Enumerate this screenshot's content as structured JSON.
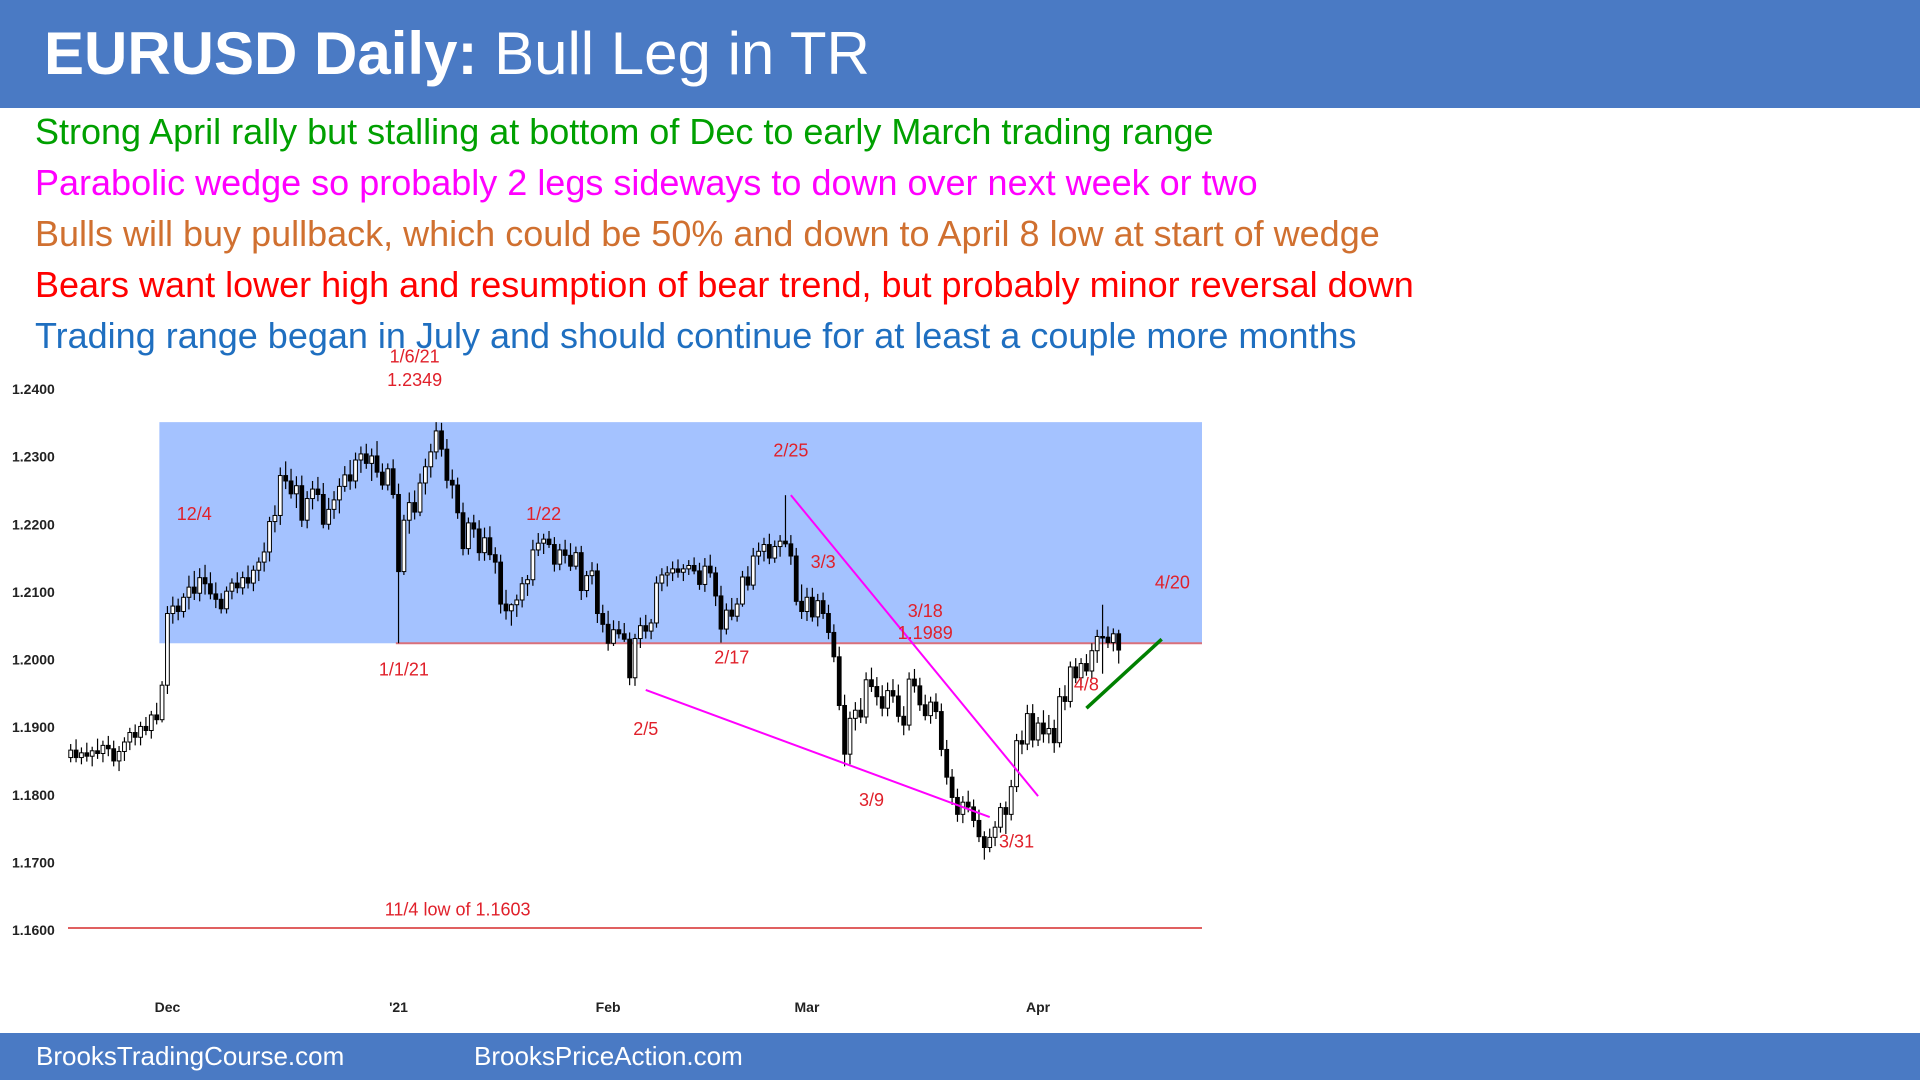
{
  "header": {
    "title_bold": "EURUSD Daily:",
    "title_rest": " Bull Leg in TR"
  },
  "bullets": [
    {
      "text": "Strong April rally but stalling at bottom of Dec to early March trading range",
      "color": "#00a000"
    },
    {
      "text": "Parabolic wedge so probably 2 legs sideways to down over next week or two",
      "color": "#ff00ff"
    },
    {
      "text": "Bulls will buy pullback, which could be 50% and down to April 8 low at start of wedge",
      "color": "#d07030"
    },
    {
      "text": "Bears want lower high and resumption of bear trend, but probably minor reversal down",
      "color": "#ff0000"
    },
    {
      "text": "Trading range began in July and should continue for at least a couple more months",
      "color": "#1f6fc0"
    }
  ],
  "footer": {
    "left": "BrooksTradingCourse.com",
    "right": "BrooksPriceAction.com"
  },
  "chart_data": {
    "type": "candlestick",
    "ylim": [
      1.16,
      1.24
    ],
    "yticks": [
      "1.2400",
      "1.2300",
      "1.2200",
      "1.2100",
      "1.2000",
      "1.1900",
      "1.1800",
      "1.1700",
      "1.1600"
    ],
    "xticks": [
      {
        "label": "Dec",
        "index": 18
      },
      {
        "label": "'21",
        "index": 61
      },
      {
        "label": "Feb",
        "index": 100
      },
      {
        "label": "Mar",
        "index": 137
      },
      {
        "label": "Apr",
        "index": 180
      }
    ],
    "n_bars": 211,
    "range_box": {
      "low": 1.2024,
      "high": 1.2351,
      "from_index": 17,
      "to_index": 211,
      "color": "#a4c2ff"
    },
    "hlines": [
      {
        "value": 1.2024,
        "from_index": 61,
        "to_index": 211,
        "color": "#d9707a"
      },
      {
        "value": 1.1603,
        "from_index": 0,
        "to_index": 211,
        "color": "#e06060"
      }
    ],
    "trendlines": [
      {
        "from": [
          134,
          1.2243
        ],
        "to": [
          180,
          1.1798
        ],
        "color": "#ff00ff"
      },
      {
        "from": [
          107,
          1.1955
        ],
        "to": [
          171,
          1.1767
        ],
        "color": "#ff00ff"
      },
      {
        "from": [
          189,
          1.1928
        ],
        "to": [
          203,
          1.203
        ],
        "color": "#008000"
      }
    ],
    "annotations": [
      {
        "text": "1/6/21",
        "index": 64,
        "price": 1.2448
      },
      {
        "text": "1.2349",
        "index": 64,
        "price": 1.2413
      },
      {
        "text": "12/4",
        "index": 23,
        "price": 1.2215
      },
      {
        "text": "1/22",
        "index": 88,
        "price": 1.2215
      },
      {
        "text": "2/25",
        "index": 134,
        "price": 1.2309
      },
      {
        "text": "3/3",
        "index": 140,
        "price": 1.2144
      },
      {
        "text": "3/18",
        "index": 159,
        "price": 1.2072
      },
      {
        "text": "1.1989",
        "index": 159,
        "price": 1.2039
      },
      {
        "text": "4/20",
        "index": 205,
        "price": 1.2114
      },
      {
        "text": "1/1/21",
        "index": 62,
        "price": 1.1985
      },
      {
        "text": "2/17",
        "index": 123,
        "price": 1.2003
      },
      {
        "text": "2/5",
        "index": 107,
        "price": 1.1897
      },
      {
        "text": "4/8",
        "index": 189,
        "price": 1.1963
      },
      {
        "text": "3/9",
        "index": 149,
        "price": 1.1792
      },
      {
        "text": "3/31",
        "index": 176,
        "price": 1.1731
      },
      {
        "text": "11/4 low of 1.1603",
        "index": 72,
        "price": 1.163
      }
    ],
    "candles": [
      [
        1.1855,
        1.1875,
        1.1848,
        1.1866
      ],
      [
        1.1866,
        1.1882,
        1.1848,
        1.1855
      ],
      [
        1.1855,
        1.187,
        1.1845,
        1.1862
      ],
      [
        1.1862,
        1.1877,
        1.1849,
        1.1857
      ],
      [
        1.1857,
        1.1871,
        1.1842,
        1.1865
      ],
      [
        1.1865,
        1.1883,
        1.1853,
        1.1861
      ],
      [
        1.1861,
        1.188,
        1.1848,
        1.1873
      ],
      [
        1.1873,
        1.1887,
        1.1857,
        1.1868
      ],
      [
        1.1868,
        1.188,
        1.1842,
        1.185
      ],
      [
        1.185,
        1.1872,
        1.1835,
        1.1864
      ],
      [
        1.1864,
        1.1885,
        1.185,
        1.1878
      ],
      [
        1.1878,
        1.1899,
        1.1866,
        1.1892
      ],
      [
        1.1892,
        1.1904,
        1.1873,
        1.1885
      ],
      [
        1.1885,
        1.1908,
        1.1873,
        1.1901
      ],
      [
        1.1901,
        1.1915,
        1.1888,
        1.1895
      ],
      [
        1.1895,
        1.1924,
        1.1883,
        1.1918
      ],
      [
        1.1918,
        1.1936,
        1.1904,
        1.1911
      ],
      [
        1.1911,
        1.1968,
        1.1907,
        1.1962
      ],
      [
        1.1962,
        1.2079,
        1.1949,
        1.2068
      ],
      [
        1.2068,
        1.2093,
        1.2053,
        1.2079
      ],
      [
        1.2079,
        1.209,
        1.2058,
        1.2071
      ],
      [
        1.2071,
        1.2098,
        1.2062,
        1.2092
      ],
      [
        1.2092,
        1.2124,
        1.2074,
        1.2107
      ],
      [
        1.2107,
        1.2131,
        1.2088,
        1.2098
      ],
      [
        1.2098,
        1.2135,
        1.2086,
        1.2121
      ],
      [
        1.2121,
        1.214,
        1.2096,
        1.2112
      ],
      [
        1.2112,
        1.2129,
        1.2089,
        1.2097
      ],
      [
        1.2097,
        1.2114,
        1.2076,
        1.2089
      ],
      [
        1.2089,
        1.2098,
        1.2068,
        1.2075
      ],
      [
        1.2075,
        1.2108,
        1.2068,
        1.2101
      ],
      [
        1.2101,
        1.212,
        1.2089,
        1.2113
      ],
      [
        1.2113,
        1.2129,
        1.2098,
        1.2106
      ],
      [
        1.2106,
        1.213,
        1.2096,
        1.2121
      ],
      [
        1.2121,
        1.2139,
        1.2105,
        1.2113
      ],
      [
        1.2113,
        1.2139,
        1.2101,
        1.2132
      ],
      [
        1.2132,
        1.2151,
        1.2116,
        1.2144
      ],
      [
        1.2144,
        1.2173,
        1.213,
        1.2159
      ],
      [
        1.2159,
        1.2211,
        1.2145,
        1.2204
      ],
      [
        1.2204,
        1.2228,
        1.2188,
        1.2213
      ],
      [
        1.2213,
        1.2284,
        1.2199,
        1.2272
      ],
      [
        1.2272,
        1.2293,
        1.2252,
        1.2264
      ],
      [
        1.2264,
        1.2282,
        1.2238,
        1.2245
      ],
      [
        1.2245,
        1.2271,
        1.2224,
        1.2257
      ],
      [
        1.2257,
        1.2272,
        1.2196,
        1.2206
      ],
      [
        1.2206,
        1.2249,
        1.2194,
        1.2238
      ],
      [
        1.2238,
        1.2264,
        1.2222,
        1.2252
      ],
      [
        1.2252,
        1.227,
        1.2234,
        1.2244
      ],
      [
        1.2244,
        1.2261,
        1.2194,
        1.22
      ],
      [
        1.22,
        1.2239,
        1.2192,
        1.2222
      ],
      [
        1.2222,
        1.2249,
        1.2208,
        1.2236
      ],
      [
        1.2236,
        1.2268,
        1.2216,
        1.2256
      ],
      [
        1.2256,
        1.2286,
        1.2248,
        1.2273
      ],
      [
        1.2273,
        1.2295,
        1.2251,
        1.2264
      ],
      [
        1.2264,
        1.2306,
        1.2253,
        1.2295
      ],
      [
        1.2295,
        1.2315,
        1.2276,
        1.2304
      ],
      [
        1.2304,
        1.2319,
        1.2282,
        1.229
      ],
      [
        1.229,
        1.2312,
        1.2264,
        1.2301
      ],
      [
        1.2301,
        1.2323,
        1.2269,
        1.2277
      ],
      [
        1.2277,
        1.229,
        1.2251,
        1.2258
      ],
      [
        1.2258,
        1.229,
        1.225,
        1.2282
      ],
      [
        1.2282,
        1.2296,
        1.2238,
        1.2244
      ],
      [
        1.2244,
        1.226,
        1.2024,
        1.213
      ],
      [
        1.213,
        1.2214,
        1.2125,
        1.2206
      ],
      [
        1.2206,
        1.2247,
        1.2186,
        1.2232
      ],
      [
        1.2232,
        1.225,
        1.2207,
        1.2218
      ],
      [
        1.2218,
        1.2275,
        1.2212,
        1.2261
      ],
      [
        1.2261,
        1.2297,
        1.2244,
        1.2285
      ],
      [
        1.2285,
        1.2319,
        1.2269,
        1.2307
      ],
      [
        1.2307,
        1.2351,
        1.2296,
        1.2338
      ],
      [
        1.2338,
        1.235,
        1.23,
        1.2311
      ],
      [
        1.2311,
        1.2326,
        1.2253,
        1.2265
      ],
      [
        1.2265,
        1.2281,
        1.2238,
        1.2258
      ],
      [
        1.2258,
        1.2269,
        1.2208,
        1.2217
      ],
      [
        1.2217,
        1.2232,
        1.2154,
        1.2164
      ],
      [
        1.2164,
        1.221,
        1.2155,
        1.2202
      ],
      [
        1.2202,
        1.2214,
        1.218,
        1.2193
      ],
      [
        1.2193,
        1.2206,
        1.2146,
        1.2158
      ],
      [
        1.2158,
        1.2195,
        1.2146,
        1.218
      ],
      [
        1.218,
        1.2197,
        1.2147,
        1.2155
      ],
      [
        1.2155,
        1.2166,
        1.2127,
        1.2144
      ],
      [
        1.2144,
        1.2155,
        1.2068,
        1.2082
      ],
      [
        1.2082,
        1.2103,
        1.2059,
        1.2072
      ],
      [
        1.2072,
        1.2083,
        1.205,
        1.2081
      ],
      [
        1.2081,
        1.2096,
        1.2063,
        1.2088
      ],
      [
        1.2088,
        1.2122,
        1.2077,
        1.2112
      ],
      [
        1.2112,
        1.2125,
        1.2094,
        1.2118
      ],
      [
        1.2118,
        1.2177,
        1.2109,
        1.2162
      ],
      [
        1.2162,
        1.2187,
        1.2153,
        1.2172
      ],
      [
        1.2172,
        1.2186,
        1.2156,
        1.2178
      ],
      [
        1.2178,
        1.219,
        1.2165,
        1.217
      ],
      [
        1.217,
        1.2181,
        1.213,
        1.2141
      ],
      [
        1.2141,
        1.2171,
        1.2132,
        1.2162
      ],
      [
        1.2162,
        1.2177,
        1.2142,
        1.2154
      ],
      [
        1.2154,
        1.2172,
        1.2131,
        1.2138
      ],
      [
        1.2138,
        1.2167,
        1.2133,
        1.2158
      ],
      [
        1.2158,
        1.2168,
        1.2088,
        1.2102
      ],
      [
        1.2102,
        1.2131,
        1.2092,
        1.2124
      ],
      [
        1.2124,
        1.2144,
        1.2111,
        1.2131
      ],
      [
        1.2131,
        1.2142,
        1.2054,
        1.2068
      ],
      [
        1.2068,
        1.2081,
        1.204,
        1.2052
      ],
      [
        1.2052,
        1.2072,
        1.2013,
        1.2024
      ],
      [
        1.2024,
        1.2058,
        1.202,
        1.2044
      ],
      [
        1.2044,
        1.2057,
        1.2031,
        1.2038
      ],
      [
        1.2038,
        1.2054,
        1.2026,
        1.203
      ],
      [
        1.203,
        1.204,
        1.1962,
        1.1973
      ],
      [
        1.1973,
        1.2038,
        1.1961,
        1.2031
      ],
      [
        1.2031,
        1.2062,
        1.2017,
        1.205
      ],
      [
        1.205,
        1.2066,
        1.2031,
        1.2042
      ],
      [
        1.2042,
        1.206,
        1.203,
        1.2054
      ],
      [
        1.2054,
        1.2123,
        1.2047,
        1.2113
      ],
      [
        1.2113,
        1.2135,
        1.2101,
        1.2125
      ],
      [
        1.2125,
        1.2138,
        1.2108,
        1.2128
      ],
      [
        1.2128,
        1.2145,
        1.2116,
        1.2134
      ],
      [
        1.2134,
        1.2148,
        1.2121,
        1.2129
      ],
      [
        1.2129,
        1.2141,
        1.2116,
        1.2134
      ],
      [
        1.2134,
        1.2147,
        1.2125,
        1.2139
      ],
      [
        1.2139,
        1.2151,
        1.2126,
        1.2131
      ],
      [
        1.2131,
        1.2143,
        1.2103,
        1.2111
      ],
      [
        1.2111,
        1.215,
        1.21,
        1.2138
      ],
      [
        1.2138,
        1.2155,
        1.2121,
        1.2128
      ],
      [
        1.2128,
        1.2137,
        1.2079,
        1.2094
      ],
      [
        1.2094,
        1.2109,
        1.2025,
        1.2045
      ],
      [
        1.2045,
        1.2083,
        1.2037,
        1.2073
      ],
      [
        1.2073,
        1.2091,
        1.2058,
        1.2064
      ],
      [
        1.2064,
        1.2091,
        1.2056,
        1.2082
      ],
      [
        1.2082,
        1.2131,
        1.2078,
        1.2122
      ],
      [
        1.2122,
        1.2138,
        1.2102,
        1.211
      ],
      [
        1.211,
        1.2165,
        1.2103,
        1.2153
      ],
      [
        1.2153,
        1.2173,
        1.214,
        1.216
      ],
      [
        1.216,
        1.218,
        1.2145,
        1.217
      ],
      [
        1.217,
        1.2186,
        1.2141,
        1.215
      ],
      [
        1.215,
        1.2176,
        1.2143,
        1.2167
      ],
      [
        1.2167,
        1.2184,
        1.2152,
        1.2175
      ],
      [
        1.2175,
        1.2243,
        1.2166,
        1.2171
      ],
      [
        1.2171,
        1.2184,
        1.214,
        1.2153
      ],
      [
        1.2153,
        1.2165,
        1.208,
        1.2086
      ],
      [
        1.2086,
        1.2111,
        1.206,
        1.2071
      ],
      [
        1.2071,
        1.2106,
        1.2057,
        1.2092
      ],
      [
        1.2092,
        1.2106,
        1.2056,
        1.2063
      ],
      [
        1.2063,
        1.2097,
        1.2049,
        1.2087
      ],
      [
        1.2087,
        1.2099,
        1.206,
        1.2068
      ],
      [
        1.2068,
        1.2081,
        1.203,
        1.204
      ],
      [
        1.204,
        1.2052,
        1.1996,
        1.2004
      ],
      [
        1.2004,
        1.2019,
        1.1925,
        1.1932
      ],
      [
        1.1932,
        1.1948,
        1.1842,
        1.186
      ],
      [
        1.186,
        1.1923,
        1.1845,
        1.1913
      ],
      [
        1.1913,
        1.1937,
        1.1895,
        1.1925
      ],
      [
        1.1925,
        1.1943,
        1.1906,
        1.1915
      ],
      [
        1.1915,
        1.1981,
        1.1905,
        1.197
      ],
      [
        1.197,
        1.1988,
        1.1952,
        1.196
      ],
      [
        1.196,
        1.1974,
        1.1932,
        1.1945
      ],
      [
        1.1945,
        1.1962,
        1.1916,
        1.1928
      ],
      [
        1.1928,
        1.1966,
        1.1916,
        1.1954
      ],
      [
        1.1954,
        1.1971,
        1.1936,
        1.1946
      ],
      [
        1.1946,
        1.1963,
        1.1907,
        1.1916
      ],
      [
        1.1916,
        1.1931,
        1.1888,
        1.1903
      ],
      [
        1.1903,
        1.1981,
        1.1895,
        1.1971
      ],
      [
        1.1971,
        1.1986,
        1.1951,
        1.1961
      ],
      [
        1.1961,
        1.1973,
        1.1924,
        1.1933
      ],
      [
        1.1933,
        1.1948,
        1.191,
        1.1917
      ],
      [
        1.1917,
        1.1945,
        1.1905,
        1.1937
      ],
      [
        1.1937,
        1.195,
        1.1912,
        1.1923
      ],
      [
        1.1923,
        1.1935,
        1.1857,
        1.1867
      ],
      [
        1.1867,
        1.1881,
        1.1815,
        1.1826
      ],
      [
        1.1826,
        1.1838,
        1.1785,
        1.1796
      ],
      [
        1.1796,
        1.1809,
        1.176,
        1.1771
      ],
      [
        1.1771,
        1.1798,
        1.1758,
        1.1789
      ],
      [
        1.1789,
        1.1806,
        1.1774,
        1.1782
      ],
      [
        1.1782,
        1.1793,
        1.1752,
        1.1762
      ],
      [
        1.1762,
        1.1778,
        1.173,
        1.1738
      ],
      [
        1.1738,
        1.1746,
        1.1704,
        1.1722
      ],
      [
        1.1722,
        1.175,
        1.1715,
        1.1737
      ],
      [
        1.1737,
        1.1761,
        1.1724,
        1.1752
      ],
      [
        1.1752,
        1.1788,
        1.1744,
        1.1781
      ],
      [
        1.1781,
        1.179,
        1.1742,
        1.1771
      ],
      [
        1.1771,
        1.1822,
        1.1762,
        1.1812
      ],
      [
        1.1812,
        1.189,
        1.1804,
        1.188
      ],
      [
        1.188,
        1.1895,
        1.186,
        1.1875
      ],
      [
        1.1875,
        1.1933,
        1.1866,
        1.192
      ],
      [
        1.192,
        1.1934,
        1.187,
        1.1881
      ],
      [
        1.1881,
        1.1915,
        1.1872,
        1.1906
      ],
      [
        1.1906,
        1.1925,
        1.1877,
        1.189
      ],
      [
        1.189,
        1.1918,
        1.1876,
        1.1898
      ],
      [
        1.1898,
        1.1911,
        1.1862,
        1.1877
      ],
      [
        1.1877,
        1.1958,
        1.187,
        1.1945
      ],
      [
        1.1945,
        1.1962,
        1.1925,
        1.1938
      ],
      [
        1.1938,
        1.1997,
        1.1929,
        1.1989
      ],
      [
        1.1989,
        1.2002,
        1.1965,
        1.1973
      ],
      [
        1.1973,
        1.2002,
        1.1963,
        1.1994
      ],
      [
        1.1994,
        1.2008,
        1.1976,
        1.1983
      ],
      [
        1.1983,
        1.2024,
        1.1971,
        1.2013
      ],
      [
        1.2013,
        1.2044,
        1.1995,
        1.2034
      ],
      [
        1.2034,
        1.2081,
        1.1979,
        1.2033
      ],
      [
        1.2033,
        1.2049,
        1.2017,
        1.2025
      ],
      [
        1.2025,
        1.2046,
        1.2012,
        1.2038
      ],
      [
        1.2038,
        1.2044,
        1.1994,
        1.2014
      ]
    ]
  }
}
